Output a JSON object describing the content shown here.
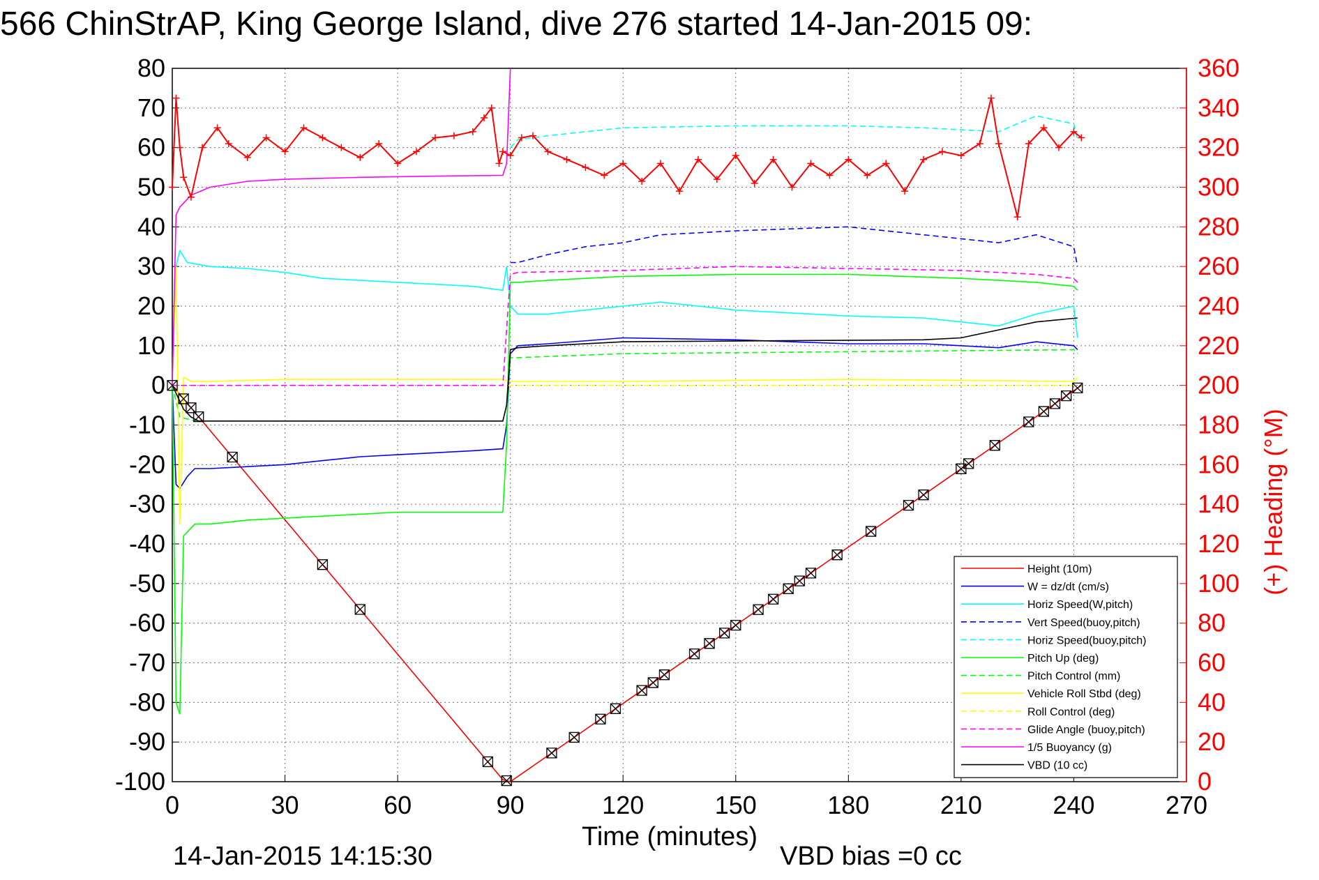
{
  "chart_data": {
    "type": "line",
    "title": "566 ChinStrAP, King George Island, dive 276 started 14-Jan-2015 09:",
    "xlabel": "Time (minutes)",
    "ylabel_right": "(+) Heading (°M)",
    "xlim": [
      0,
      270
    ],
    "ylim_left": [
      -100,
      80
    ],
    "ylim_right": [
      0,
      360
    ],
    "xticks": [
      "0",
      "30",
      "60",
      "90",
      "120",
      "150",
      "180",
      "210",
      "240",
      "270"
    ],
    "yticks_left": [
      "80",
      "70",
      "60",
      "50",
      "40",
      "30",
      "20",
      "10",
      "0",
      "-10",
      "-20",
      "-30",
      "-40",
      "-50",
      "-60",
      "-70",
      "-80",
      "-90",
      "-100"
    ],
    "yticks_right": [
      "360",
      "340",
      "320",
      "300",
      "280",
      "260",
      "240",
      "220",
      "200",
      "180",
      "160",
      "140",
      "120",
      "100",
      "80",
      "60",
      "40",
      "20",
      "0"
    ],
    "grid": true,
    "legend_position": "bottom-right",
    "footer_left": "14-Jan-2015 14:15:30",
    "footer_right": "VBD bias =0 cc",
    "colors": {
      "height": "#ff0000",
      "w": "#0000ff",
      "horiz_speed": "#00ffff",
      "pitch": "#00ff00",
      "roll": "#ffff00",
      "glide": "#ff00ff",
      "buoyancy": "#ff00ff",
      "vbd": "#000000",
      "heading": "#ff0000"
    },
    "series": [
      {
        "name": "Height (10m)",
        "color": "#ff0000",
        "dash": false,
        "x": [
          0,
          88,
          90,
          242
        ],
        "y": [
          0,
          -99.5,
          -100,
          0
        ]
      },
      {
        "name": "W = dz/dt (cm/s)",
        "color": "#0000ff",
        "dash": false,
        "x": [
          0,
          1,
          2,
          4,
          6,
          10,
          20,
          30,
          40,
          50,
          60,
          70,
          80,
          88,
          89,
          90,
          92,
          100,
          120,
          150,
          180,
          200,
          210,
          220,
          230,
          240,
          241
        ],
        "y": [
          0,
          -25,
          -26,
          -23,
          -21,
          -21,
          -20.5,
          -20,
          -19,
          -18,
          -17.5,
          -17,
          -16.5,
          -16,
          -10,
          8,
          10,
          10.5,
          12,
          11.5,
          10.5,
          10.5,
          10,
          9.5,
          11,
          10,
          9
        ]
      },
      {
        "name": "Horiz Speed(W,pitch)",
        "color": "#00ffff",
        "dash": false,
        "x": [
          0,
          1,
          2,
          4,
          10,
          20,
          30,
          40,
          50,
          60,
          70,
          80,
          88,
          89,
          90,
          92,
          100,
          120,
          130,
          150,
          180,
          200,
          210,
          220,
          230,
          240,
          241
        ],
        "y": [
          0,
          30,
          34,
          31,
          30,
          29.5,
          28.5,
          27,
          26.5,
          26,
          25.5,
          25,
          24,
          30,
          20,
          18,
          18,
          20,
          21,
          19,
          17.5,
          17,
          16,
          15,
          18,
          20,
          12
        ]
      },
      {
        "name": "Vert Speed(buoy,pitch)",
        "color": "#0000ff",
        "dash": true,
        "x": [
          90,
          92,
          100,
          110,
          120,
          130,
          150,
          180,
          200,
          210,
          220,
          230,
          240,
          241
        ],
        "y": [
          31,
          31,
          33,
          35,
          36,
          38,
          39,
          40,
          38,
          37,
          36,
          38,
          35,
          30
        ]
      },
      {
        "name": "Horiz Speed(buoy,pitch)",
        "color": "#00ffff",
        "dash": true,
        "x": [
          90,
          92,
          100,
          120,
          150,
          180,
          200,
          210,
          220,
          230,
          240,
          241
        ],
        "y": [
          60,
          62,
          63,
          65,
          65.5,
          65.5,
          65,
          64.5,
          64,
          68,
          66,
          62
        ]
      },
      {
        "name": "Pitch Up (deg)",
        "color": "#00ff00",
        "dash": false,
        "x": [
          0,
          1,
          2,
          3,
          6,
          10,
          20,
          30,
          40,
          50,
          60,
          70,
          80,
          88,
          89,
          90,
          92,
          100,
          120,
          150,
          180,
          210,
          220,
          230,
          240,
          241
        ],
        "y": [
          0,
          -80,
          -83,
          -38,
          -35,
          -35,
          -34,
          -33.5,
          -33,
          -32.5,
          -32,
          -32,
          -32,
          -32,
          -15,
          26,
          26,
          26.5,
          27.5,
          28,
          28,
          27,
          26.5,
          26,
          25,
          24
        ]
      },
      {
        "name": "Pitch Control (mm)",
        "color": "#00ff00",
        "dash": true,
        "x": [
          0,
          2,
          6,
          88,
          89,
          90,
          92,
          120,
          180,
          240,
          241
        ],
        "y": [
          0,
          -8,
          -9,
          -9,
          -5,
          7,
          7,
          8,
          8.5,
          9,
          8
        ]
      },
      {
        "name": "Vehicle Roll Stbd (deg)",
        "color": "#ffff00",
        "dash": false,
        "x": [
          0,
          1,
          2,
          3,
          5,
          10,
          30,
          60,
          88,
          90,
          120,
          180,
          240,
          241
        ],
        "y": [
          0,
          30,
          -35,
          2,
          1,
          1,
          1.5,
          1.5,
          1.5,
          1,
          1,
          1.5,
          1,
          2
        ]
      },
      {
        "name": "Roll Control (deg)",
        "color": "#ffff00",
        "dash": true,
        "x": [
          0,
          88,
          90,
          240,
          241
        ],
        "y": [
          0,
          0,
          0,
          0,
          0
        ]
      },
      {
        "name": "Glide Angle (buoy,pitch)",
        "color": "#ff00ff",
        "dash": true,
        "x": [
          0,
          88,
          90,
          92,
          120,
          150,
          180,
          210,
          230,
          240,
          241
        ],
        "y": [
          0,
          0,
          28,
          28.5,
          29,
          30,
          29.5,
          29,
          28,
          27,
          26
        ]
      },
      {
        "name": "1/5 Buoyancy (g)",
        "color": "#ff00ff",
        "dash": false,
        "x": [
          0,
          1,
          2,
          3,
          5,
          10,
          20,
          30,
          50,
          70,
          88,
          89,
          90
        ],
        "y": [
          0,
          43,
          45,
          46,
          48,
          50,
          51.5,
          52,
          52.5,
          52.8,
          53,
          56,
          80
        ]
      },
      {
        "name": "VBD (10 cc)",
        "color": "#000000",
        "dash": false,
        "x": [
          0,
          1,
          2,
          3,
          5,
          7,
          88,
          89,
          90,
          92,
          100,
          120,
          200,
          210,
          220,
          225,
          230,
          241
        ],
        "y": [
          0,
          -2,
          -4,
          -6,
          -8,
          -9,
          -9,
          -5,
          9,
          9.5,
          10,
          11,
          11.5,
          12,
          14,
          15,
          16,
          17
        ]
      },
      {
        "name": "Heading",
        "axis": "right",
        "color": "#ff0000",
        "dash": false,
        "x": [
          0,
          1,
          2,
          3,
          5,
          8,
          12,
          15,
          20,
          25,
          30,
          35,
          40,
          45,
          50,
          55,
          60,
          65,
          70,
          75,
          80,
          83,
          85,
          87,
          88,
          90,
          93,
          96,
          100,
          105,
          110,
          115,
          120,
          125,
          130,
          135,
          140,
          145,
          150,
          155,
          160,
          165,
          170,
          175,
          180,
          185,
          190,
          195,
          200,
          205,
          210,
          215,
          218,
          220,
          225,
          228,
          232,
          236,
          240,
          242
        ],
        "y": [
          300,
          345,
          320,
          305,
          295,
          320,
          330,
          322,
          315,
          325,
          318,
          330,
          325,
          320,
          315,
          322,
          312,
          318,
          325,
          326,
          328,
          335,
          340,
          312,
          318,
          316,
          325,
          326,
          318,
          314,
          310,
          306,
          312,
          303,
          312,
          298,
          314,
          304,
          316,
          302,
          314,
          300,
          312,
          306,
          314,
          306,
          312,
          298,
          314,
          318,
          316,
          322,
          345,
          322,
          285,
          322,
          330,
          320,
          328,
          325
        ]
      }
    ]
  }
}
